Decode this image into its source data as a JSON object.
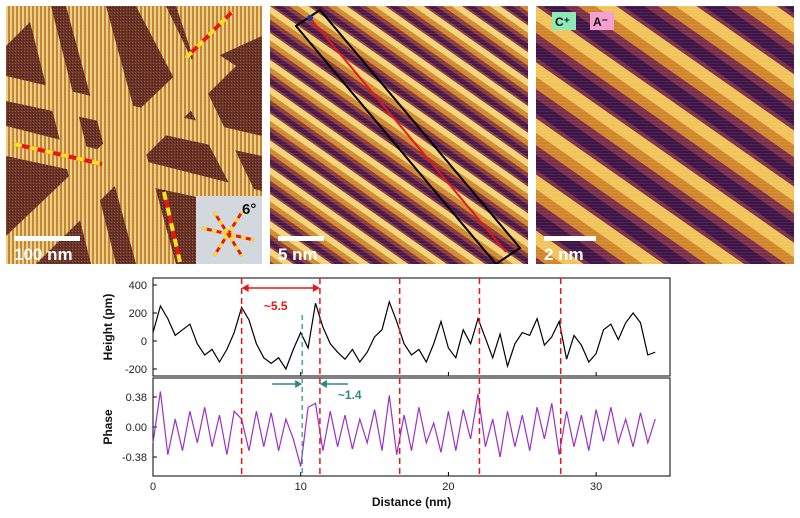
{
  "panels": {
    "left": {
      "scalebar_label": "100 nm",
      "inset_angle_label": "6°"
    },
    "middle": {
      "scalebar_label": "5 nm"
    },
    "right": {
      "scalebar_label": "2 nm",
      "badge_cation": "C⁺",
      "badge_anion": "A⁻"
    }
  },
  "colors": {
    "afm_dark": "#3a1446",
    "afm_mid": "#b8641e",
    "afm_light": "#f5e07a",
    "red_line": "#e8161a",
    "yellow_line": "#f7e11e",
    "height_line": "#000000",
    "phase_line": "#9b2fc9",
    "teal": "#2a8a80",
    "badge_cation_bg": "#8fe8b8",
    "badge_anion_bg": "#f4a0d0"
  },
  "chart_data": {
    "type": "line",
    "xlabel": "Distance (nm)",
    "xlim": [
      0,
      35
    ],
    "x_ticks": [
      0,
      10,
      20,
      30
    ],
    "subplots": [
      {
        "ylabel": "Height (pm)",
        "ylim": [
          -250,
          450
        ],
        "y_ticks": [
          400,
          200,
          0,
          -200
        ],
        "series": [
          {
            "x": [
              0,
              0.5,
              1,
              1.5,
              2,
              2.5,
              3,
              3.5,
              4,
              4.5,
              5,
              5.5,
              6,
              6.5,
              7,
              7.5,
              8,
              8.5,
              9,
              9.5,
              10,
              10.5,
              11,
              11.5,
              12,
              12.5,
              13,
              13.5,
              14,
              14.5,
              15,
              15.5,
              16,
              16.5,
              17,
              17.5,
              18,
              18.5,
              19,
              19.5,
              20,
              20.5,
              21,
              21.5,
              22,
              22.5,
              23,
              23.5,
              24,
              24.5,
              25,
              25.5,
              26,
              26.5,
              27,
              27.5,
              28,
              28.5,
              29,
              29.5,
              30,
              30.5,
              31,
              31.5,
              32,
              32.5,
              33,
              33.5,
              34
            ],
            "values": [
              60,
              250,
              160,
              40,
              80,
              120,
              -20,
              -100,
              -60,
              -150,
              -60,
              60,
              240,
              150,
              -20,
              -120,
              -160,
              -120,
              -200,
              -60,
              60,
              -50,
              270,
              100,
              -20,
              -80,
              -130,
              -60,
              -150,
              -80,
              30,
              80,
              280,
              140,
              -20,
              -100,
              -60,
              -150,
              -20,
              140,
              -50,
              -120,
              80,
              -20,
              160,
              20,
              -120,
              50,
              -180,
              -20,
              60,
              40,
              160,
              -30,
              30,
              140,
              -130,
              40,
              -30,
              -150,
              -90,
              80,
              120,
              10,
              130,
              200,
              130,
              -100,
              -80
            ]
          }
        ]
      },
      {
        "ylabel": "Phase",
        "ylim": [
          -0.62,
          0.62
        ],
        "y_ticks": [
          0.38,
          0.0,
          -0.38
        ],
        "series": [
          {
            "x": [
              0,
              0.5,
              1,
              1.5,
              2,
              2.5,
              3,
              3.5,
              4,
              4.5,
              5,
              5.5,
              6,
              6.5,
              7,
              7.5,
              8,
              8.5,
              9,
              9.5,
              10,
              10.5,
              11,
              11.5,
              12,
              12.5,
              13,
              13.5,
              14,
              14.5,
              15,
              15.5,
              16,
              16.5,
              17,
              17.5,
              18,
              18.5,
              19,
              19.5,
              20,
              20.5,
              21,
              21.5,
              22,
              22.5,
              23,
              23.5,
              24,
              24.5,
              25,
              25.5,
              26,
              26.5,
              27,
              27.5,
              28,
              28.5,
              29,
              29.5,
              30,
              30.5,
              31,
              31.5,
              32,
              32.5,
              33,
              33.5,
              34
            ],
            "values": [
              -0.2,
              0.45,
              -0.35,
              0.1,
              -0.3,
              0.2,
              -0.2,
              0.25,
              -0.25,
              0.15,
              -0.35,
              0.2,
              0.1,
              -0.3,
              0.2,
              -0.25,
              0.18,
              -0.3,
              0.1,
              -0.15,
              -0.5,
              0.25,
              0.3,
              -0.3,
              0.2,
              -0.25,
              0.15,
              -0.28,
              0.1,
              -0.2,
              0.22,
              -0.3,
              0.4,
              -0.35,
              0.15,
              -0.3,
              0.25,
              -0.2,
              0.05,
              -0.32,
              0.2,
              -0.3,
              0.22,
              -0.15,
              0.42,
              -0.25,
              0.1,
              -0.38,
              0.2,
              -0.25,
              0.15,
              -0.3,
              0.25,
              -0.15,
              0.3,
              -0.35,
              0.2,
              -0.25,
              0.15,
              -0.3,
              0.22,
              -0.18,
              0.25,
              -0.2,
              0.1,
              -0.25,
              0.18,
              -0.2,
              0.1
            ]
          }
        ]
      }
    ],
    "guides": {
      "red_dashed_x": [
        6,
        11.3,
        16.7,
        22.1,
        27.6
      ],
      "teal_dashed_x": [
        10.1
      ]
    },
    "annotations": [
      {
        "text": "~5.5",
        "from_x": 6,
        "to_x": 11.3,
        "color": "red"
      },
      {
        "text": "~1.4",
        "from_x": 10.1,
        "to_x": 11.3,
        "color": "teal"
      }
    ]
  }
}
